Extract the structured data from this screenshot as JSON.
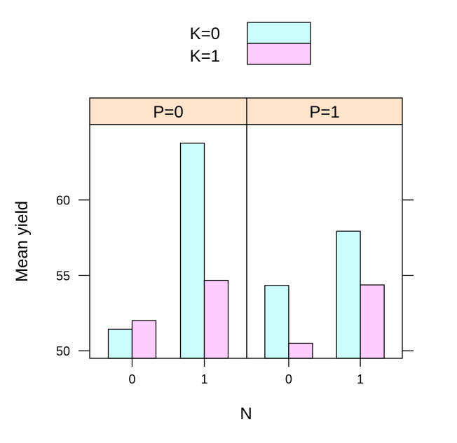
{
  "chart_data": {
    "type": "bar",
    "layout": "trellis",
    "xlabel": "N",
    "ylabel": "Mean yield",
    "ylim": [
      49.5,
      65
    ],
    "yticks": [
      50,
      55,
      60
    ],
    "categories": [
      "0",
      "1"
    ],
    "legend": {
      "placement": "top",
      "entries": [
        {
          "name": "K=0",
          "color": "#ccffff"
        },
        {
          "name": "K=1",
          "color": "#ffccff"
        }
      ]
    },
    "strip_color": "#ffe5cc",
    "panels": [
      {
        "label": "P=0",
        "series": [
          {
            "name": "K=0",
            "values": [
              51.43,
              63.77
            ]
          },
          {
            "name": "K=1",
            "values": [
              52.0,
              54.67
            ]
          }
        ]
      },
      {
        "label": "P=1",
        "series": [
          {
            "name": "K=0",
            "values": [
              54.33,
              57.93
            ]
          },
          {
            "name": "K=1",
            "values": [
              50.5,
              54.37
            ]
          }
        ]
      }
    ]
  }
}
